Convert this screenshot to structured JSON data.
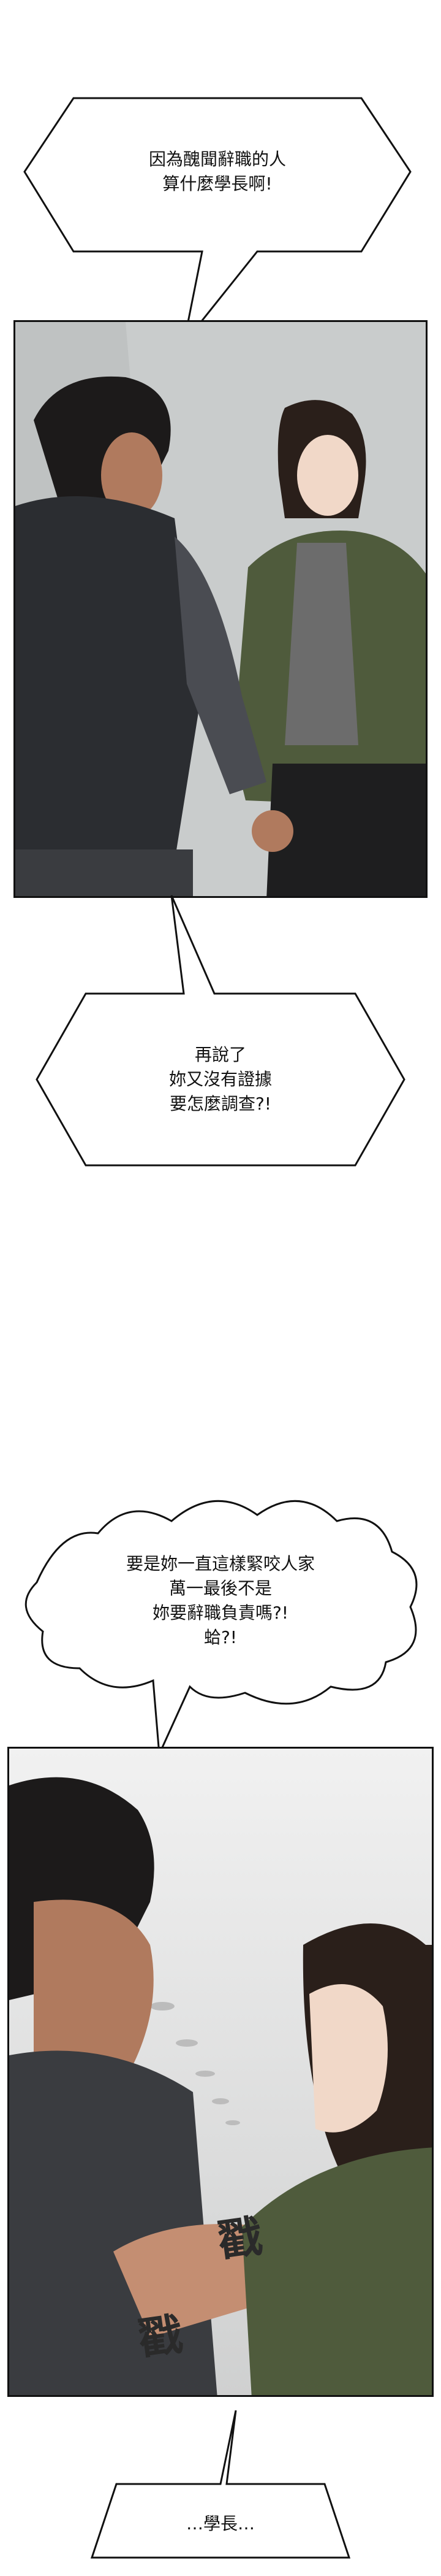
{
  "bubbles": {
    "b1": "因為醜聞辭職的人\n算什麼學長啊!",
    "b2": "再說了\n妳又沒有證據\n要怎麼調查?!",
    "b3": "要是妳一直這樣緊咬人家\n萬一最後不是\n妳要辭職負責嗎?!\n蛤?!",
    "b4": "…學長…"
  },
  "sfx": {
    "s1": "戳",
    "s2": "戳"
  },
  "colors": {
    "background": "#ffffff",
    "outline": "#111111",
    "wall": "#cfd2d2",
    "jacket_green": "#4f5b3c",
    "vest_dark": "#2b2d31",
    "hair_dark": "#2a1f1a"
  }
}
